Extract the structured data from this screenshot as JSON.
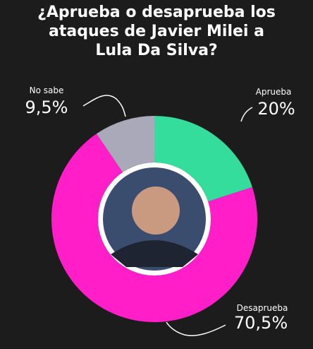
{
  "chart_data": {
    "type": "pie",
    "title": "¿Aprueba o desaprueba los ataques de Javier Milei a Lula Da Silva?",
    "categories": [
      "Aprueba",
      "Desaprueba",
      "No sabe"
    ],
    "values": [
      20,
      70.5,
      9.5
    ],
    "value_labels": [
      "20%",
      "70,5%",
      "9,5%"
    ],
    "colors": [
      "#34dd9c",
      "#ff1ec8",
      "#a9a9b9"
    ]
  }
}
